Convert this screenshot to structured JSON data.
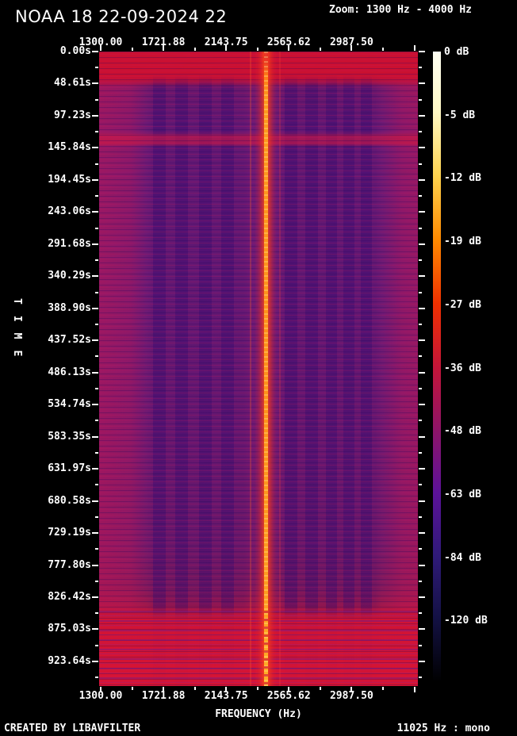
{
  "header": {
    "title": "NOAA 18 22-09-2024 22",
    "zoom_label": "Zoom: 1300 Hz - 4000 Hz"
  },
  "axes": {
    "x_label": "FREQUENCY (Hz)",
    "y_label": "TIME",
    "freq_ticks": [
      "1300.00",
      "1721.88",
      "2143.75",
      "2565.62",
      "2987.50"
    ],
    "time_ticks": [
      "0.00s",
      "48.61s",
      "97.23s",
      "145.84s",
      "194.45s",
      "243.06s",
      "291.68s",
      "340.29s",
      "388.90s",
      "437.52s",
      "486.13s",
      "534.74s",
      "583.35s",
      "631.97s",
      "680.58s",
      "729.19s",
      "777.80s",
      "826.42s",
      "875.03s",
      "923.64s"
    ],
    "db_ticks": [
      "0 dB",
      "-5 dB",
      "-12 dB",
      "-19 dB",
      "-27 dB",
      "-36 dB",
      "-48 dB",
      "-63 dB",
      "-84 dB",
      "-120 dB"
    ]
  },
  "footer": {
    "created_by": "CREATED BY LIBAVFILTER",
    "sample_rate": "11025 Hz : mono"
  },
  "chart_data": {
    "type": "heatmap",
    "title": "NOAA 18 22-09-2024 22",
    "subtitle": "Zoom: 1300 Hz - 4000 Hz",
    "xlabel": "FREQUENCY (Hz)",
    "ylabel": "TIME",
    "x_range_hz": [
      1300,
      4000
    ],
    "x_ticks_hz": [
      1300.0,
      1721.88,
      2143.75,
      2565.62,
      2987.5
    ],
    "y_ticks_s": [
      0.0,
      48.61,
      97.23,
      145.84,
      194.45,
      243.06,
      291.68,
      340.29,
      388.9,
      437.52,
      486.13,
      534.74,
      583.35,
      631.97,
      680.58,
      729.19,
      777.8,
      826.42,
      875.03,
      923.64
    ],
    "colorbar_db": [
      0,
      -5,
      -12,
      -19,
      -27,
      -36,
      -48,
      -63,
      -84,
      -120
    ],
    "colorbar_stops_pct": [
      0,
      9.6,
      19.7,
      29.8,
      40,
      50,
      60,
      70,
      80,
      90,
      100
    ],
    "colorbar_colors": [
      "#fffff4",
      "#fff8c4",
      "#ffd34e",
      "#ff8a00",
      "#f03000",
      "#c41538",
      "#8e1468",
      "#5c129a",
      "#2f1a78",
      "#131143",
      "#000000"
    ],
    "sample_rate_hz": 11025,
    "channels": "mono",
    "visible_features": [
      "Strong continuous carrier tone near 2400 Hz (bright orange vertical line) lasting the whole pass",
      "High-intensity broadband red band from 0 s to about 35 s (start of recording)",
      "Horizontal high-intensity calibration band near 146 s",
      "Two clusters of darker vertical subcarrier bands between roughly 1650-2300 Hz and 2500-3150 Hz",
      "High-intensity broadband red zone from about 875 s to end of recording (~958 s)",
      "Carrier line becomes dashed/intermittent inside the final red zone"
    ]
  }
}
